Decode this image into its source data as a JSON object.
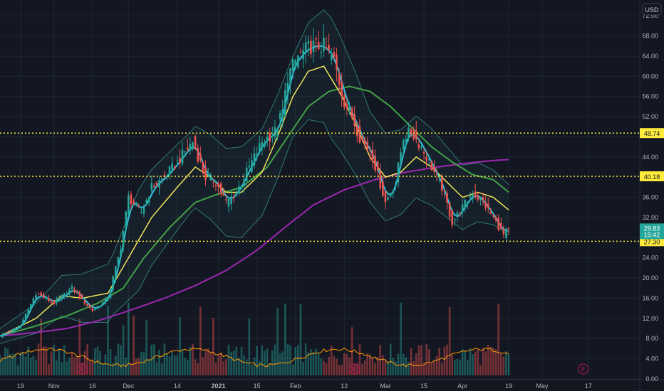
{
  "chart_data": {
    "type": "candlestick",
    "currency": "USD",
    "colors": {
      "background": "#131722",
      "grid": "#1f2533",
      "axis_text": "#b2b5be",
      "up": "#26a69a",
      "down": "#ef5350",
      "hline": "#ffeb3b",
      "ema_fast": "#2fc3dd",
      "sma_mid": "#f0e45a",
      "sma_slow": "#43a047",
      "sma_200": "#9c27b0",
      "bollinger": "#3a8f8a",
      "volume_ma": "#ff9800",
      "price_label_bg": "#26a69a"
    },
    "y_axis": {
      "min": 0,
      "max": 74,
      "ticks": [
        "72.00",
        "68.00",
        "64.00",
        "60.00",
        "56.00",
        "52.00",
        "48.00",
        "44.00",
        "40.00",
        "36.00",
        "32.00",
        "28.00",
        "24.00",
        "20.00",
        "16.00",
        "12.00",
        "8.00",
        "4.00",
        "0.00"
      ]
    },
    "x_axis": {
      "tick_labels": [
        "19",
        "Nov",
        "16",
        "Dec",
        "14",
        "2021",
        "15",
        "Feb",
        "12",
        "Mar",
        "15",
        "Apr",
        "19",
        "May",
        "17"
      ],
      "tick_x_values": [
        4,
        17,
        32,
        46,
        65,
        81,
        96,
        111,
        130,
        146,
        161,
        176,
        194,
        207,
        225
      ],
      "bold_labels": [
        "2021"
      ],
      "range": [
        -4,
        245
      ]
    },
    "horizontal_levels": [
      {
        "value": 48.74,
        "label": "48.74"
      },
      {
        "value": 40.18,
        "label": "40.18"
      },
      {
        "value": 27.3,
        "label": "27.30"
      }
    ],
    "last_price": {
      "value": 29.83,
      "label": "29.83",
      "countdown": "15:42"
    },
    "earnings_markers": [
      {
        "x": 28,
        "label": "E"
      },
      {
        "x": 134,
        "label": "E"
      },
      {
        "x": 223,
        "label": "E"
      }
    ],
    "price_keypoints": [
      [
        -4,
        8.5
      ],
      [
        4,
        10.5
      ],
      [
        10,
        17
      ],
      [
        17,
        15
      ],
      [
        24,
        18
      ],
      [
        32,
        13.5
      ],
      [
        38,
        16
      ],
      [
        43,
        26
      ],
      [
        46,
        36
      ],
      [
        51,
        33
      ],
      [
        55,
        38
      ],
      [
        60,
        40
      ],
      [
        65,
        43
      ],
      [
        71,
        47
      ],
      [
        76,
        40
      ],
      [
        80,
        39
      ],
      [
        84,
        35
      ],
      [
        88,
        37
      ],
      [
        93,
        42
      ],
      [
        98,
        47
      ],
      [
        103,
        49
      ],
      [
        106,
        53
      ],
      [
        108,
        60
      ],
      [
        112,
        64
      ],
      [
        117,
        66
      ],
      [
        122,
        66
      ],
      [
        126,
        63
      ],
      [
        130,
        55
      ],
      [
        133,
        52
      ],
      [
        136,
        48
      ],
      [
        141,
        44
      ],
      [
        146,
        35
      ],
      [
        150,
        39
      ],
      [
        153,
        48
      ],
      [
        156,
        49
      ],
      [
        160,
        46
      ],
      [
        164,
        42
      ],
      [
        168,
        38
      ],
      [
        172,
        31
      ],
      [
        176,
        34
      ],
      [
        180,
        37
      ],
      [
        184,
        35
      ],
      [
        188,
        32
      ],
      [
        192,
        28.5
      ],
      [
        194,
        29.83
      ]
    ],
    "sma_mid_keypoints": [
      [
        -4,
        8.5
      ],
      [
        10,
        12
      ],
      [
        20,
        16.5
      ],
      [
        28,
        16
      ],
      [
        38,
        17
      ],
      [
        46,
        24
      ],
      [
        55,
        32
      ],
      [
        65,
        38
      ],
      [
        72,
        42
      ],
      [
        78,
        40
      ],
      [
        84,
        37
      ],
      [
        90,
        37
      ],
      [
        98,
        41
      ],
      [
        104,
        48
      ],
      [
        110,
        56
      ],
      [
        116,
        61
      ],
      [
        122,
        62
      ],
      [
        128,
        57
      ],
      [
        134,
        51
      ],
      [
        140,
        44
      ],
      [
        146,
        40
      ],
      [
        152,
        41
      ],
      [
        158,
        44
      ],
      [
        164,
        42
      ],
      [
        170,
        39
      ],
      [
        176,
        36
      ],
      [
        182,
        37
      ],
      [
        188,
        36
      ],
      [
        194,
        33.5
      ]
    ],
    "sma_slow_keypoints": [
      [
        -4,
        8.5
      ],
      [
        10,
        10.5
      ],
      [
        22,
        12.5
      ],
      [
        34,
        15
      ],
      [
        44,
        18
      ],
      [
        52,
        24
      ],
      [
        62,
        30
      ],
      [
        72,
        35
      ],
      [
        80,
        36.5
      ],
      [
        90,
        38
      ],
      [
        100,
        42
      ],
      [
        108,
        48
      ],
      [
        116,
        54
      ],
      [
        124,
        57
      ],
      [
        132,
        58
      ],
      [
        140,
        57
      ],
      [
        148,
        54
      ],
      [
        156,
        50
      ],
      [
        164,
        46
      ],
      [
        172,
        43
      ],
      [
        180,
        40.5
      ],
      [
        188,
        39.5
      ],
      [
        194,
        37
      ]
    ],
    "sma_200_keypoints": [
      [
        -4,
        8.5
      ],
      [
        10,
        9.2
      ],
      [
        22,
        10
      ],
      [
        34,
        11.5
      ],
      [
        46,
        13.5
      ],
      [
        60,
        16
      ],
      [
        72,
        18.5
      ],
      [
        84,
        21.5
      ],
      [
        96,
        25.5
      ],
      [
        108,
        30.5
      ],
      [
        118,
        34.5
      ],
      [
        130,
        37.5
      ],
      [
        142,
        39.5
      ],
      [
        154,
        41
      ],
      [
        166,
        42
      ],
      [
        178,
        42.8
      ],
      [
        188,
        43.3
      ],
      [
        194,
        43.5
      ]
    ],
    "bollinger_width_keypoints": [
      [
        -4,
        1.5
      ],
      [
        20,
        4
      ],
      [
        40,
        6
      ],
      [
        50,
        10
      ],
      [
        70,
        8
      ],
      [
        90,
        9
      ],
      [
        110,
        8
      ],
      [
        125,
        12
      ],
      [
        140,
        9
      ],
      [
        160,
        8
      ],
      [
        180,
        6
      ],
      [
        194,
        5
      ]
    ],
    "volume": {
      "base_level": 3.2,
      "spike_level": 7,
      "spike_days": [
        12,
        27,
        38,
        44,
        46,
        48,
        53,
        66,
        74,
        79,
        93,
        104,
        107,
        113,
        133,
        152,
        171,
        190
      ]
    }
  }
}
